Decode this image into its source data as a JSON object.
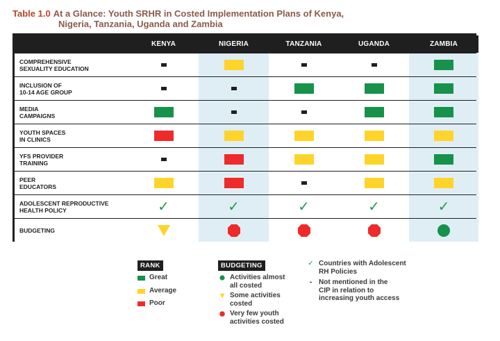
{
  "title": {
    "label": "Table 1.0",
    "line1": "At a Glance: Youth SRHR in Costed Implementation Plans of Kenya,",
    "line2": "Nigeria, Tanzania, Uganda and Zambia"
  },
  "columns": [
    "KENYA",
    "NIGERIA",
    "TANZANIA",
    "UGANDA",
    "ZAMBIA"
  ],
  "rows": [
    {
      "label_lines": [
        "COMPREHENSIVE",
        "SEXUALITY EDUCATION"
      ],
      "cells": [
        "not-mentioned",
        "average",
        "not-mentioned",
        "not-mentioned",
        "great"
      ]
    },
    {
      "label_lines": [
        "INCLUSION OF",
        "10-14 AGE GROUP"
      ],
      "cells": [
        "not-mentioned",
        "not-mentioned",
        "great",
        "great",
        "great"
      ]
    },
    {
      "label_lines": [
        "MEDIA",
        "CAMPAIGNS"
      ],
      "cells": [
        "great",
        "not-mentioned",
        "not-mentioned",
        "great",
        "great"
      ]
    },
    {
      "label_lines": [
        "YOUTH SPACES",
        "IN CLINICS"
      ],
      "cells": [
        "poor",
        "average",
        "average",
        "average",
        "average"
      ]
    },
    {
      "label_lines": [
        "YFS PROVIDER",
        "TRAINING"
      ],
      "cells": [
        "not-mentioned",
        "poor",
        "average",
        "average",
        "great"
      ]
    },
    {
      "label_lines": [
        "PEER",
        "EDUCATORS"
      ],
      "cells": [
        "average",
        "poor",
        "not-mentioned",
        "average",
        "average"
      ]
    },
    {
      "label_lines": [
        "ADOLESCENT REPRODUCTIVE",
        "HEALTH POLICY"
      ],
      "cells": [
        "check",
        "check",
        "check",
        "check",
        "check"
      ]
    },
    {
      "label_lines": [
        "BUDGETING"
      ],
      "cells": [
        "some",
        "very-few",
        "very-few",
        "very-few",
        "almost-all"
      ]
    }
  ],
  "symbols": {
    "check": "✓"
  },
  "colors": {
    "great": "#16924a",
    "average": "#ffd42a",
    "poor": "#ee2a2a",
    "check": "#1f9a4a"
  },
  "legend": {
    "rank": {
      "title": "RANK",
      "items": [
        {
          "key": "great",
          "label": "Great"
        },
        {
          "key": "average",
          "label": "Average"
        },
        {
          "key": "poor",
          "label": "Poor"
        }
      ]
    },
    "budgeting": {
      "title": "BUDGETING",
      "items": [
        {
          "icon": "green-circle-icon",
          "lines": [
            "Activities almost",
            "all costed"
          ]
        },
        {
          "icon": "yellow-triangle-icon",
          "lines": [
            "Some activities",
            "costed"
          ]
        },
        {
          "icon": "red-octagon-icon",
          "lines": [
            "Very few youth",
            "activities costed"
          ]
        }
      ]
    },
    "notes": [
      {
        "icon": "check-icon",
        "symbol": "✓",
        "lines": [
          "Countries with Adolescent",
          "RH Policies"
        ]
      },
      {
        "icon": "dash-icon",
        "symbol": "-",
        "lines": [
          "Not mentioned in the",
          "CIP in relation to",
          "increasing youth access"
        ]
      }
    ]
  }
}
